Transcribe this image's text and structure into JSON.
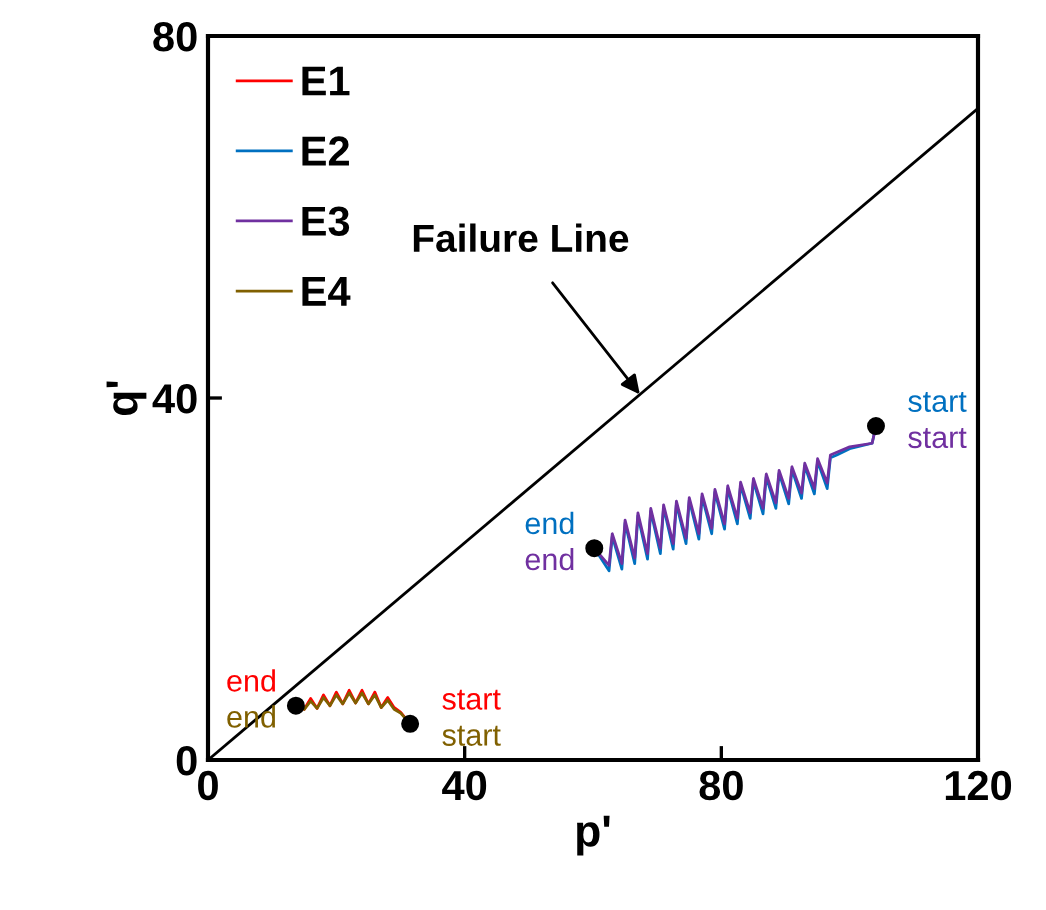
{
  "chart_data": {
    "type": "line",
    "xlabel": "p'",
    "ylabel": "q'",
    "xlim": [
      0,
      120
    ],
    "ylim": [
      0,
      80
    ],
    "xticks": [
      0,
      40,
      80,
      120
    ],
    "yticks": [
      0,
      40,
      80
    ],
    "grid": false,
    "legend": "top left",
    "marker": "none",
    "line_style": "solid",
    "series": [
      {
        "name": "E1",
        "color": "#ff0000",
        "x": [
          31.5,
          30,
          29,
          28,
          27,
          26,
          25,
          24,
          23,
          22,
          21,
          20,
          19,
          18,
          17,
          16,
          15,
          13.7
        ],
        "values": [
          4.0,
          5.3,
          5.8,
          6.9,
          5.8,
          7.5,
          6.2,
          7.7,
          6.3,
          7.7,
          6.2,
          7.5,
          6.0,
          7.2,
          5.7,
          6.8,
          5.6,
          6.0
        ]
      },
      {
        "name": "E2",
        "color": "#0070c0",
        "x": [
          104.1,
          103.5,
          100,
          98,
          97,
          96.5,
          95,
          94.5,
          93,
          92.5,
          91,
          90.5,
          89,
          88.5,
          87,
          86.5,
          85,
          84.5,
          83,
          82.5,
          81,
          80.5,
          79,
          78.5,
          77,
          76.5,
          75,
          74.5,
          73,
          72.5,
          71,
          70.5,
          69,
          68.5,
          67,
          66.5,
          65,
          64.5,
          63,
          62.5,
          60.2
        ],
        "values": [
          36.9,
          35,
          34.4,
          33.7,
          33.4,
          30.0,
          33.0,
          29.4,
          32.5,
          28.9,
          32.1,
          28.3,
          31.7,
          27.8,
          31.3,
          27.2,
          30.8,
          26.7,
          30.4,
          26.1,
          30.0,
          25.5,
          29.6,
          25.0,
          29.1,
          24.4,
          28.7,
          23.9,
          28.3,
          23.3,
          27.9,
          22.8,
          27.5,
          22.2,
          27.0,
          21.7,
          26.2,
          21.1,
          24.7,
          20.9,
          23.4
        ]
      },
      {
        "name": "E3",
        "color": "#7030a0",
        "x": [
          104.1,
          103.5,
          100,
          98,
          97,
          96.5,
          95,
          94.5,
          93,
          92.5,
          91,
          90.5,
          89,
          88.5,
          87,
          86.5,
          85,
          84.5,
          83,
          82.5,
          81,
          80.5,
          79,
          78.5,
          77,
          76.5,
          75,
          74.5,
          73,
          72.5,
          71,
          70.5,
          69,
          68.5,
          67,
          66.5,
          65,
          64.5,
          63,
          62.5,
          60.2
        ],
        "values": [
          36.9,
          35,
          34.6,
          34.0,
          33.7,
          30.6,
          33.3,
          30.0,
          32.8,
          29.5,
          32.4,
          28.9,
          32.0,
          28.4,
          31.6,
          27.8,
          31.1,
          27.3,
          30.7,
          26.7,
          30.3,
          26.1,
          29.9,
          25.6,
          29.4,
          25.0,
          29.0,
          24.5,
          28.6,
          23.9,
          28.2,
          23.4,
          27.8,
          22.8,
          27.3,
          22.3,
          26.5,
          21.7,
          25.0,
          21.5,
          23.4
        ]
      },
      {
        "name": "E4",
        "color": "#806000",
        "x": [
          31.5,
          30,
          29,
          28,
          27,
          26,
          25,
          24,
          23,
          22,
          21,
          20,
          19,
          18,
          17,
          16,
          15,
          13.7
        ],
        "values": [
          4.0,
          5.2,
          5.6,
          6.6,
          5.8,
          7.2,
          6.2,
          7.4,
          6.3,
          7.4,
          6.2,
          7.2,
          6.0,
          6.9,
          5.7,
          6.5,
          5.6,
          6.0
        ]
      },
      {
        "type": "line",
        "color": "#000000",
        "x": [
          0,
          120
        ],
        "values": [
          0,
          72
        ]
      },
      {
        "type": "scatter",
        "color": "#000000",
        "marker": "circle",
        "x": [
          104.1,
          60.2,
          31.5,
          13.7
        ],
        "values": [
          36.9,
          23.4,
          4.0,
          6.0
        ]
      }
    ],
    "annotations": [
      {
        "text": "Failure Line",
        "x": 67.3,
        "y": 40.4
      },
      {
        "text": "start",
        "x": 31.5,
        "y": 4.0
      },
      {
        "text": "end",
        "x": 13.7,
        "y": 6.0
      },
      {
        "text": "start",
        "x": 104.1,
        "y": 36.9
      },
      {
        "text": "end",
        "x": 60.2,
        "y": 23.4
      },
      {
        "text": "start",
        "x": 104.1,
        "y": 36.9
      },
      {
        "text": "end",
        "x": 60.2,
        "y": 23.4
      },
      {
        "text": "start",
        "x": 31.5,
        "y": 4.0
      },
      {
        "text": "end",
        "x": 13.7,
        "y": 6.0
      }
    ]
  }
}
